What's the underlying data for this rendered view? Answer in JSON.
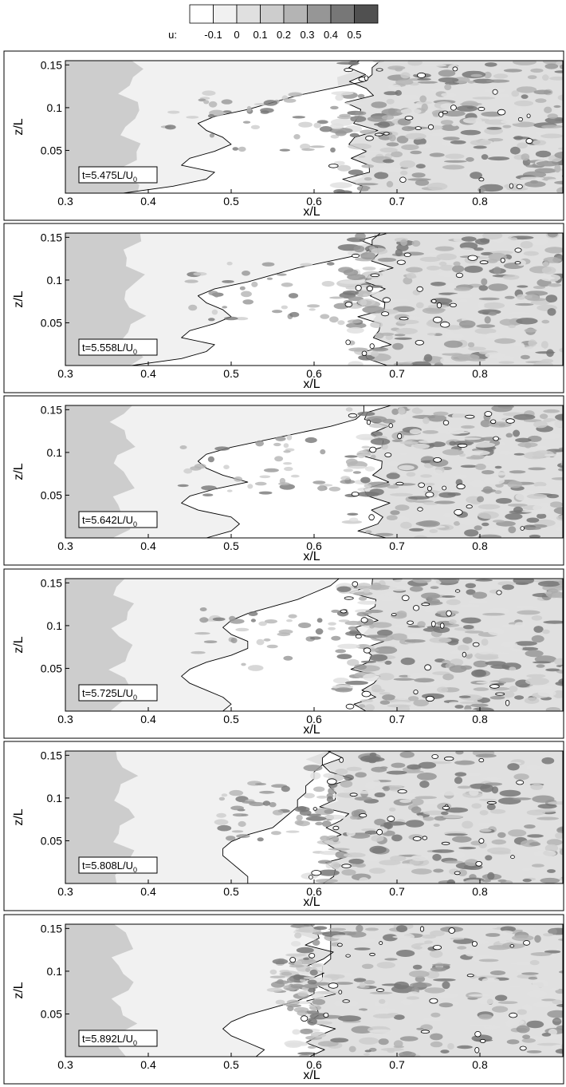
{
  "legend": {
    "label": "u:",
    "levels": [
      "-0.1",
      "0",
      "0.1",
      "0.2",
      "0.3",
      "0.4",
      "0.5"
    ],
    "colors": [
      "#ffffff",
      "#f1f1f1",
      "#e0e0e0",
      "#cdcdcd",
      "#b4b4b4",
      "#969696",
      "#777777",
      "#505050"
    ]
  },
  "axes": {
    "xlabel": "x/L",
    "ylabel": "z/L",
    "xlim": [
      0.3,
      0.9
    ],
    "ylim": [
      0,
      0.155
    ],
    "xticks": [
      "0.3",
      "0.4",
      "0.5",
      "0.6",
      "0.7",
      "0.8"
    ],
    "yticks": [
      "0.05",
      "0.1",
      "0.15"
    ]
  },
  "chart_data": [
    {
      "type": "heatmap",
      "time_label": "t=5.475L/U",
      "time_sub": "0",
      "xlabel": "x/L",
      "ylabel": "z/L",
      "front": [
        0.37,
        0.43,
        0.47,
        0.48,
        0.44,
        0.45,
        0.48,
        0.5,
        0.49,
        0.47,
        0.46,
        0.48,
        0.52,
        0.55,
        0.58,
        0.62,
        0.66,
        0.67,
        0.67,
        0.68
      ],
      "lead": 0.42,
      "bound": 0.38,
      "turb": 0.66,
      "seed": 11
    },
    {
      "type": "heatmap",
      "time_label": "t=5.558L/U",
      "time_sub": "0",
      "xlabel": "x/L",
      "ylabel": "z/L",
      "front": [
        0.38,
        0.44,
        0.47,
        0.48,
        0.44,
        0.45,
        0.48,
        0.5,
        0.49,
        0.47,
        0.46,
        0.48,
        0.52,
        0.55,
        0.58,
        0.62,
        0.66,
        0.67,
        0.67,
        0.68
      ],
      "lead": 0.45,
      "bound": 0.38,
      "turb": 0.68,
      "seed": 23
    },
    {
      "type": "heatmap",
      "time_label": "t=5.642L/U",
      "time_sub": "0",
      "xlabel": "x/L",
      "ylabel": "z/L",
      "front": [
        0.47,
        0.5,
        0.51,
        0.5,
        0.46,
        0.44,
        0.45,
        0.48,
        0.52,
        0.49,
        0.47,
        0.46,
        0.47,
        0.5,
        0.54,
        0.58,
        0.62,
        0.65,
        0.66,
        0.66
      ],
      "lead": 0.44,
      "bound": 0.37,
      "turb": 0.68,
      "seed": 37
    },
    {
      "type": "heatmap",
      "time_label": "t=5.725L/U",
      "time_sub": "0",
      "xlabel": "x/L",
      "ylabel": "z/L",
      "front": [
        0.49,
        0.5,
        0.49,
        0.47,
        0.45,
        0.44,
        0.45,
        0.47,
        0.5,
        0.52,
        0.52,
        0.5,
        0.49,
        0.5,
        0.52,
        0.55,
        0.58,
        0.6,
        0.62,
        0.63
      ],
      "lead": 0.45,
      "bound": 0.37,
      "turb": 0.67,
      "seed": 41
    },
    {
      "type": "heatmap",
      "time_label": "t=5.808L/U",
      "time_sub": "0",
      "xlabel": "x/L",
      "ylabel": "z/L",
      "front": [
        0.52,
        0.52,
        0.51,
        0.5,
        0.49,
        0.49,
        0.5,
        0.52,
        0.55,
        0.56,
        0.57,
        0.58,
        0.58,
        0.59,
        0.59,
        0.6,
        0.6,
        0.61,
        0.61,
        0.62
      ],
      "lead": 0.48,
      "bound": 0.37,
      "turb": 0.63,
      "seed": 53
    },
    {
      "type": "heatmap",
      "time_label": "t=5.892L/U",
      "time_sub": "0",
      "xlabel": "x/L",
      "ylabel": "z/L",
      "front": [
        0.53,
        0.54,
        0.52,
        0.5,
        0.49,
        0.5,
        0.52,
        0.55,
        0.58,
        0.6,
        0.6,
        0.61,
        0.61,
        0.61,
        0.62,
        0.62,
        0.62,
        0.62,
        0.62,
        0.62
      ],
      "lead": 0.55,
      "bound": 0.37,
      "turb": 0.61,
      "seed": 67
    }
  ]
}
